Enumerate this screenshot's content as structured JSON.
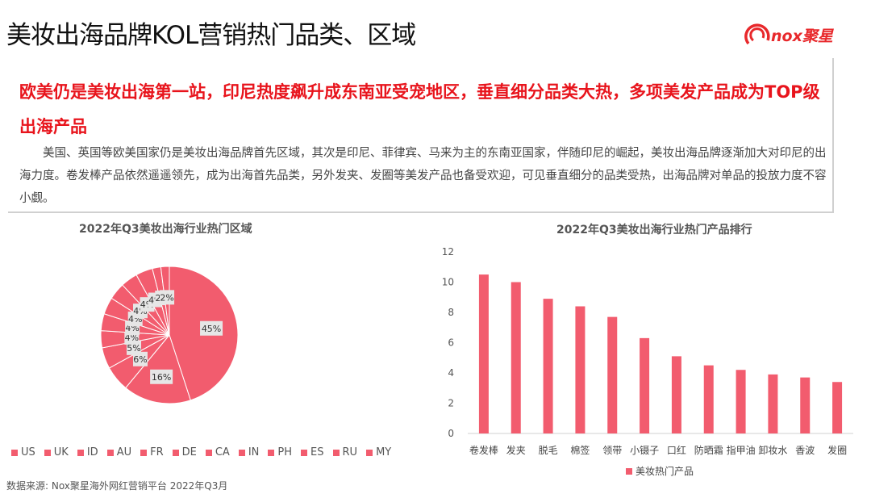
{
  "header": {
    "title": "美妆出海品牌KOL营销热门品类、区域",
    "logo_text": "nox聚星"
  },
  "summary": {
    "headline": "欧美仍是美妆出海第一站，印尼热度飙升成东南亚受宠地区，垂直细分品类大热，多项美发产品成为TOP级出海产品",
    "body": "美国、英国等欧美国家仍是美妆出海品牌首先区域，其次是印尼、菲律宾、马来为主的东南亚国家，伴随印尼的崛起，美妆出海品牌逐渐加大对印尼的出海力度。卷发棒产品依然遥遥领先，成为出海首先品类，另外发夹、发圈等美发产品也备受欢迎，可见垂直细分的品类受热，出海品牌对单品的投放力度不容小觑。"
  },
  "colors": {
    "accent": "#e8141c",
    "pie_fill": "#f25c6e",
    "bar_fill": "#f25c6e",
    "slice_border": "#ffffff"
  },
  "chart_data": [
    {
      "type": "pie",
      "title": "2022年Q3美妆出海行业热门区域",
      "categories": [
        "US",
        "UK",
        "ID",
        "AU",
        "FR",
        "DE",
        "CA",
        "IN",
        "PH",
        "ES",
        "RU",
        "MY"
      ],
      "values": [
        45,
        16,
        6,
        5,
        4,
        4,
        4,
        4,
        4,
        4,
        2,
        2
      ],
      "value_labels": [
        "45%",
        "16%",
        "6%",
        "5%",
        "4%",
        "4%",
        "4%",
        "4%",
        "4%",
        "4%",
        "2%",
        "2%"
      ],
      "legend_position": "bottom"
    },
    {
      "type": "bar",
      "title": "2022年Q3美妆出海行业热门产品排行",
      "categories": [
        "卷发棒",
        "发夹",
        "脱毛",
        "棉签",
        "领带",
        "小镊子",
        "口红",
        "防晒霜",
        "指甲油",
        "卸妆水",
        "香波",
        "发圈"
      ],
      "series": [
        {
          "name": "美妆热门产品",
          "values": [
            10.5,
            10.0,
            8.9,
            8.4,
            7.7,
            6.3,
            5.1,
            4.5,
            4.2,
            3.9,
            3.7,
            3.4
          ]
        }
      ],
      "yticks": [
        "0",
        "2",
        "4",
        "6",
        "8",
        "10",
        "12"
      ],
      "ylim": [
        0,
        12
      ],
      "grid": false,
      "legend_position": "bottom"
    }
  ],
  "footer": {
    "source": "数据来源: Nox聚星海外网红营销平台 2022年Q3月"
  }
}
